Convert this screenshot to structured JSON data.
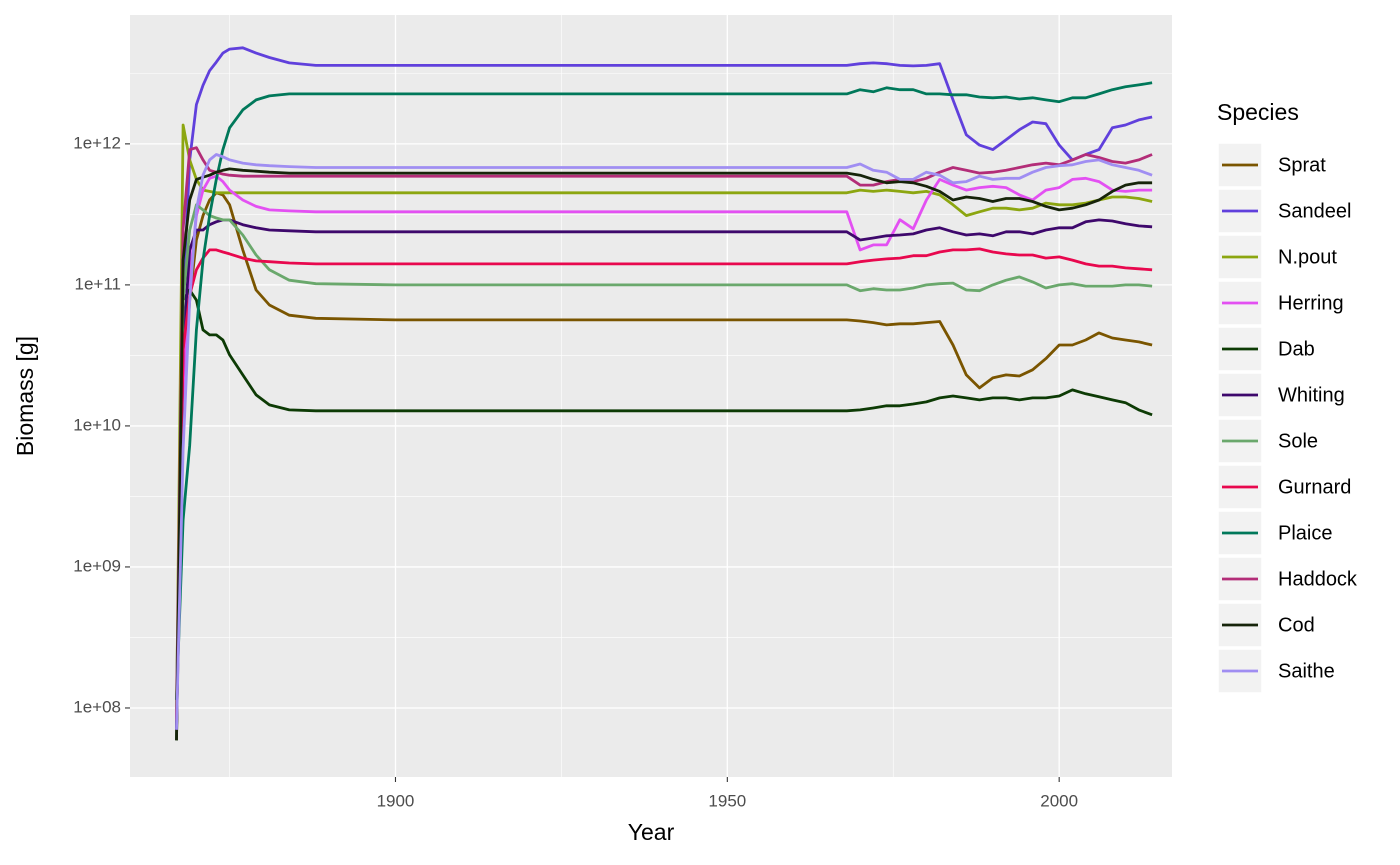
{
  "chart_data": {
    "type": "line",
    "x_label": "Year",
    "y_label": "Biomass [g]",
    "legend_title": "Species",
    "log_y": true,
    "grid": true,
    "legend_position": "right",
    "xlim": [
      1860,
      2017
    ],
    "xticks": [
      1900,
      1950,
      2000
    ],
    "xminor": [
      1875,
      1925,
      1975
    ],
    "ylim": [
      32400000.0,
      8200000000000.0
    ],
    "yticks": [
      {
        "value": 100000000.0,
        "label": "1e+08"
      },
      {
        "value": 1000000000.0,
        "label": "1e+09"
      },
      {
        "value": 10000000000.0,
        "label": "1e+10"
      },
      {
        "value": 100000000000.0,
        "label": "1e+11"
      },
      {
        "value": 1000000000000.0,
        "label": "1e+12"
      }
    ],
    "yminor": [
      316200000.0,
      3162000000.0,
      31620000000.0,
      316200000000.0,
      3162000000000.0
    ],
    "x": [
      1867,
      1868,
      1869,
      1870,
      1871,
      1872,
      1873,
      1874,
      1875,
      1877,
      1879,
      1881,
      1884,
      1888,
      1900,
      1950,
      1968,
      1970,
      1972,
      1974,
      1976,
      1978,
      1980,
      1982,
      1984,
      1986,
      1988,
      1990,
      1992,
      1994,
      1996,
      1998,
      2000,
      2002,
      2004,
      2006,
      2008,
      2010,
      2012,
      2014
    ],
    "series": [
      {
        "name": "Sprat",
        "color": "#7a5500",
        "values": [
          70000000.0,
          15300000000.0,
          78000000000.0,
          208000000000.0,
          310000000000.0,
          400000000000.0,
          450000000000.0,
          435000000000.0,
          370000000000.0,
          177000000000.0,
          92000000000.0,
          72000000000.0,
          61000000000.0,
          58000000000.0,
          56500000000.0,
          56500000000.0,
          56500000000.0,
          55500000000.0,
          54000000000.0,
          52000000000.0,
          53000000000.0,
          53000000000.0,
          54000000000.0,
          55000000000.0,
          37500000000.0,
          23000000000.0,
          18600000000.0,
          21900000000.0,
          23000000000.0,
          22600000000.0,
          25000000000.0,
          30000000000.0,
          37500000000.0,
          37500000000.0,
          40700000000.0,
          45700000000.0,
          42000000000.0,
          40700000000.0,
          39400000000.0,
          37500000000.0
        ]
      },
      {
        "name": "Sandeel",
        "color": "#6040dc",
        "values": [
          70000000.0,
          78000000000.0,
          770000000000.0,
          1900000000000.0,
          2600000000000.0,
          3300000000000.0,
          3800000000000.0,
          4400000000000.0,
          4700000000000.0,
          4800000000000.0,
          4400000000000.0,
          4100000000000.0,
          3750000000000.0,
          3600000000000.0,
          3600000000000.0,
          3600000000000.0,
          3600000000000.0,
          3700000000000.0,
          3750000000000.0,
          3700000000000.0,
          3600000000000.0,
          3570000000000.0,
          3600000000000.0,
          3700000000000.0,
          2050000000000.0,
          1160000000000.0,
          980000000000.0,
          910000000000.0,
          1070000000000.0,
          1260000000000.0,
          1430000000000.0,
          1390000000000.0,
          980000000000.0,
          770000000000.0,
          840000000000.0,
          910000000000.0,
          1300000000000.0,
          1360000000000.0,
          1480000000000.0,
          1550000000000.0
        ]
      },
      {
        "name": "N.pout",
        "color": "#8ca610",
        "values": [
          82000000.0,
          1360000000000.0,
          770000000000.0,
          560000000000.0,
          470000000000.0,
          460000000000.0,
          450000000000.0,
          450000000000.0,
          450000000000.0,
          450000000000.0,
          450000000000.0,
          450000000000.0,
          450000000000.0,
          450000000000.0,
          450000000000.0,
          450000000000.0,
          450000000000.0,
          470000000000.0,
          460000000000.0,
          470000000000.0,
          460000000000.0,
          450000000000.0,
          460000000000.0,
          435000000000.0,
          370000000000.0,
          310000000000.0,
          330000000000.0,
          350000000000.0,
          350000000000.0,
          340000000000.0,
          350000000000.0,
          380000000000.0,
          370000000000.0,
          370000000000.0,
          380000000000.0,
          400000000000.0,
          420000000000.0,
          420000000000.0,
          410000000000.0,
          390000000000.0
        ]
      },
      {
        "name": "Herring",
        "color": "#e350f2",
        "values": [
          70000000.0,
          15300000000.0,
          108000000000.0,
          310000000000.0,
          470000000000.0,
          570000000000.0,
          590000000000.0,
          540000000000.0,
          470000000000.0,
          400000000000.0,
          360000000000.0,
          340000000000.0,
          335000000000.0,
          330000000000.0,
          330000000000.0,
          330000000000.0,
          330000000000.0,
          177000000000.0,
          192000000000.0,
          192000000000.0,
          290000000000.0,
          250000000000.0,
          400000000000.0,
          560000000000.0,
          510000000000.0,
          470000000000.0,
          490000000000.0,
          500000000000.0,
          490000000000.0,
          435000000000.0,
          400000000000.0,
          470000000000.0,
          490000000000.0,
          560000000000.0,
          570000000000.0,
          540000000000.0,
          470000000000.0,
          460000000000.0,
          470000000000.0,
          470000000000.0
        ]
      },
      {
        "name": "Dab",
        "color": "#0d3b05",
        "values": [
          59000000.0,
          78000000000.0,
          92000000000.0,
          78000000000.0,
          48000000000.0,
          44200000000.0,
          44200000000.0,
          40700000000.0,
          31900000000.0,
          23000000000.0,
          16600000000.0,
          14100000000.0,
          13000000000.0,
          12800000000.0,
          12800000000.0,
          12800000000.0,
          12800000000.0,
          13000000000.0,
          13400000000.0,
          13900000000.0,
          13900000000.0,
          14300000000.0,
          14800000000.0,
          15800000000.0,
          16300000000.0,
          15800000000.0,
          15300000000.0,
          15800000000.0,
          15800000000.0,
          15300000000.0,
          15800000000.0,
          15800000000.0,
          16300000000.0,
          18000000000.0,
          16900000000.0,
          16100000000.0,
          15300000000.0,
          14600000000.0,
          13000000000.0,
          12000000000.0
        ]
      },
      {
        "name": "Whiting",
        "color": "#3e086c",
        "values": [
          70000000.0,
          35000000000.0,
          177000000000.0,
          245000000000.0,
          245000000000.0,
          267000000000.0,
          280000000000.0,
          289000000000.0,
          289000000000.0,
          267000000000.0,
          254000000000.0,
          245000000000.0,
          242000000000.0,
          238000000000.0,
          238000000000.0,
          238000000000.0,
          238000000000.0,
          208000000000.0,
          215000000000.0,
          223000000000.0,
          226000000000.0,
          230000000000.0,
          245000000000.0,
          254000000000.0,
          238000000000.0,
          226000000000.0,
          230000000000.0,
          223000000000.0,
          238000000000.0,
          238000000000.0,
          230000000000.0,
          245000000000.0,
          254000000000.0,
          254000000000.0,
          280000000000.0,
          289000000000.0,
          284000000000.0,
          271000000000.0,
          262000000000.0,
          258000000000.0
        ]
      },
      {
        "name": "Sole",
        "color": "#6aa86c",
        "values": [
          114000000.0,
          78000000000.0,
          245000000000.0,
          370000000000.0,
          340000000000.0,
          310000000000.0,
          298000000000.0,
          289000000000.0,
          289000000000.0,
          226000000000.0,
          163000000000.0,
          128000000000.0,
          108000000000.0,
          102000000000.0,
          100000000000.0,
          100000000000.0,
          100000000000.0,
          91000000000.0,
          94000000000.0,
          92000000000.0,
          92000000000.0,
          95000000000.0,
          100000000000.0,
          102000000000.0,
          103000000000.0,
          92000000000.0,
          91000000000.0,
          100000000000.0,
          108000000000.0,
          114000000000.0,
          105000000000.0,
          95000000000.0,
          100000000000.0,
          102000000000.0,
          98000000000.0,
          98000000000.0,
          98000000000.0,
          100000000000.0,
          100000000000.0,
          98000000000.0
        ]
      },
      {
        "name": "Gurnard",
        "color": "#e8084e",
        "values": [
          82000000.0,
          35000000000.0,
          85000000000.0,
          128000000000.0,
          155000000000.0,
          177000000000.0,
          177000000000.0,
          171000000000.0,
          166000000000.0,
          155000000000.0,
          148000000000.0,
          146000000000.0,
          143000000000.0,
          141000000000.0,
          141000000000.0,
          141000000000.0,
          141000000000.0,
          146000000000.0,
          150000000000.0,
          153000000000.0,
          155000000000.0,
          161000000000.0,
          161000000000.0,
          171000000000.0,
          177000000000.0,
          177000000000.0,
          180000000000.0,
          171000000000.0,
          166000000000.0,
          163000000000.0,
          163000000000.0,
          155000000000.0,
          158000000000.0,
          150000000000.0,
          141000000000.0,
          136000000000.0,
          136000000000.0,
          132000000000.0,
          130000000000.0,
          128000000000.0
        ]
      },
      {
        "name": "Plaice",
        "color": "#00785a",
        "values": [
          114000000.0,
          2150000000.0,
          7300000000.0,
          48000000000.0,
          150000000000.0,
          310000000000.0,
          560000000000.0,
          910000000000.0,
          1300000000000.0,
          1740000000000.0,
          2050000000000.0,
          2190000000000.0,
          2260000000000.0,
          2260000000000.0,
          2260000000000.0,
          2260000000000.0,
          2260000000000.0,
          2420000000000.0,
          2340000000000.0,
          2500000000000.0,
          2420000000000.0,
          2420000000000.0,
          2260000000000.0,
          2260000000000.0,
          2230000000000.0,
          2230000000000.0,
          2150000000000.0,
          2120000000000.0,
          2150000000000.0,
          2080000000000.0,
          2120000000000.0,
          2050000000000.0,
          1990000000000.0,
          2120000000000.0,
          2120000000000.0,
          2260000000000.0,
          2420000000000.0,
          2540000000000.0,
          2620000000000.0,
          2710000000000.0
        ]
      },
      {
        "name": "Haddock",
        "color": "#b32d78",
        "values": [
          82000000.0,
          250000000000.0,
          910000000000.0,
          940000000000.0,
          770000000000.0,
          650000000000.0,
          630000000000.0,
          610000000000.0,
          600000000000.0,
          590000000000.0,
          590000000000.0,
          590000000000.0,
          590000000000.0,
          590000000000.0,
          590000000000.0,
          590000000000.0,
          590000000000.0,
          510000000000.0,
          510000000000.0,
          540000000000.0,
          560000000000.0,
          540000000000.0,
          570000000000.0,
          630000000000.0,
          680000000000.0,
          650000000000.0,
          620000000000.0,
          630000000000.0,
          650000000000.0,
          680000000000.0,
          710000000000.0,
          730000000000.0,
          710000000000.0,
          770000000000.0,
          840000000000.0,
          800000000000.0,
          750000000000.0,
          730000000000.0,
          770000000000.0,
          840000000000.0
        ]
      },
      {
        "name": "Cod",
        "color": "#16240a",
        "values": [
          59000000.0,
          150000000000.0,
          400000000000.0,
          560000000000.0,
          580000000000.0,
          600000000000.0,
          630000000000.0,
          650000000000.0,
          665000000000.0,
          650000000000.0,
          640000000000.0,
          630000000000.0,
          620000000000.0,
          620000000000.0,
          620000000000.0,
          620000000000.0,
          620000000000.0,
          600000000000.0,
          560000000000.0,
          530000000000.0,
          540000000000.0,
          530000000000.0,
          500000000000.0,
          460000000000.0,
          400000000000.0,
          420000000000.0,
          410000000000.0,
          390000000000.0,
          410000000000.0,
          410000000000.0,
          390000000000.0,
          360000000000.0,
          340000000000.0,
          350000000000.0,
          370000000000.0,
          400000000000.0,
          460000000000.0,
          510000000000.0,
          530000000000.0,
          530000000000.0
        ]
      },
      {
        "name": "Saithe",
        "color": "#a08ef2",
        "values": [
          70000000.0,
          6800000000.0,
          78000000000.0,
          340000000000.0,
          600000000000.0,
          770000000000.0,
          840000000000.0,
          810000000000.0,
          770000000000.0,
          730000000000.0,
          710000000000.0,
          700000000000.0,
          690000000000.0,
          680000000000.0,
          680000000000.0,
          680000000000.0,
          680000000000.0,
          720000000000.0,
          650000000000.0,
          630000000000.0,
          560000000000.0,
          560000000000.0,
          630000000000.0,
          600000000000.0,
          530000000000.0,
          540000000000.0,
          590000000000.0,
          560000000000.0,
          570000000000.0,
          570000000000.0,
          630000000000.0,
          680000000000.0,
          700000000000.0,
          710000000000.0,
          750000000000.0,
          770000000000.0,
          710000000000.0,
          680000000000.0,
          650000000000.0,
          600000000000.0
        ]
      }
    ]
  }
}
